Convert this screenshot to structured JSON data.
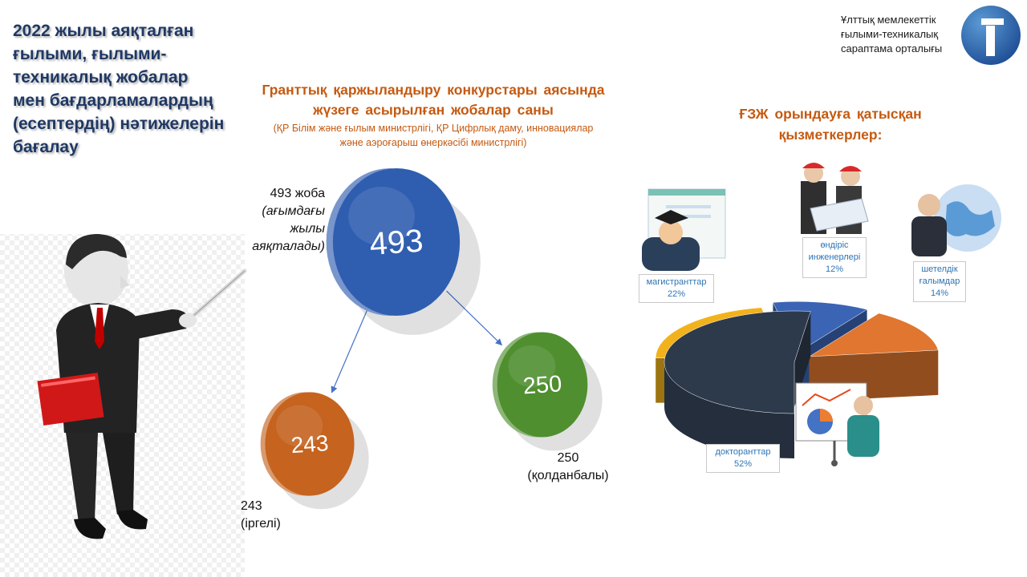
{
  "header": {
    "title_lines": [
      "2022 жылы аяқталған",
      "ғылыми, ғылыми-",
      "техникалық жобалар",
      "мен бағдарламалардың",
      "(есептердің) нәтижелерін",
      "бағалау"
    ]
  },
  "org": {
    "lines": [
      "Ұлттық мемлекеттік",
      "ғылыми-техникалық",
      "сараптама орталығы"
    ]
  },
  "colors": {
    "title": "#1f3864",
    "accent": "#c55a11",
    "total_coin": "#2f5eb0",
    "applied_coin": "#4f8f2f",
    "basic_coin": "#c5631f"
  },
  "center": {
    "title_lines": [
      "Гранттық  қаржыландыру  конкурстары  аясында",
      "жүзеге  асырылған  жобалар  саны"
    ],
    "subtitle_lines": [
      "(ҚР Білім және ғылым министрлігі, ҚР Цифрлық даму, инновациялар",
      "және аэроғарыш өнеркәсібі министрлігі)"
    ],
    "total_note": "493 жоба",
    "total_note_italic": [
      "(ағымдағы",
      "жылы",
      "аяқталады)"
    ],
    "applied_note": [
      "250",
      "(қолданбалы)"
    ],
    "basic_note": [
      "243",
      "(іргелі)"
    ]
  },
  "right": {
    "title_lines": [
      "ҒЗЖ орындауға қатысқан",
      "қызметкерлер:"
    ],
    "callouts": {
      "masters": [
        "магистранттар",
        "22%"
      ],
      "engineers": [
        "өндіріс",
        "инженерлері",
        "12%"
      ],
      "foreign": [
        "шетелдік",
        "ғалымдар",
        "14%"
      ],
      "doctoral": [
        "докторанттар",
        "52%"
      ]
    }
  },
  "chart_data": [
    {
      "type": "bubble",
      "categories": [
        "Total",
        "Basic",
        "Applied"
      ],
      "values": [
        493,
        243,
        250
      ],
      "labels": [
        "493",
        "243",
        "250"
      ],
      "colors": [
        "#2f5eb0",
        "#c5631f",
        "#4f8f2f"
      ]
    },
    {
      "type": "pie",
      "categories": [
        "докторанттар",
        "магистранттар",
        "өндіріс инженерлері",
        "шетелдік ғалымдар"
      ],
      "values": [
        52,
        22,
        12,
        14
      ],
      "unit": "%",
      "colors": [
        "#2d3a4c",
        "#f2b21b",
        "#3b64b4",
        "#e0762f"
      ]
    }
  ]
}
